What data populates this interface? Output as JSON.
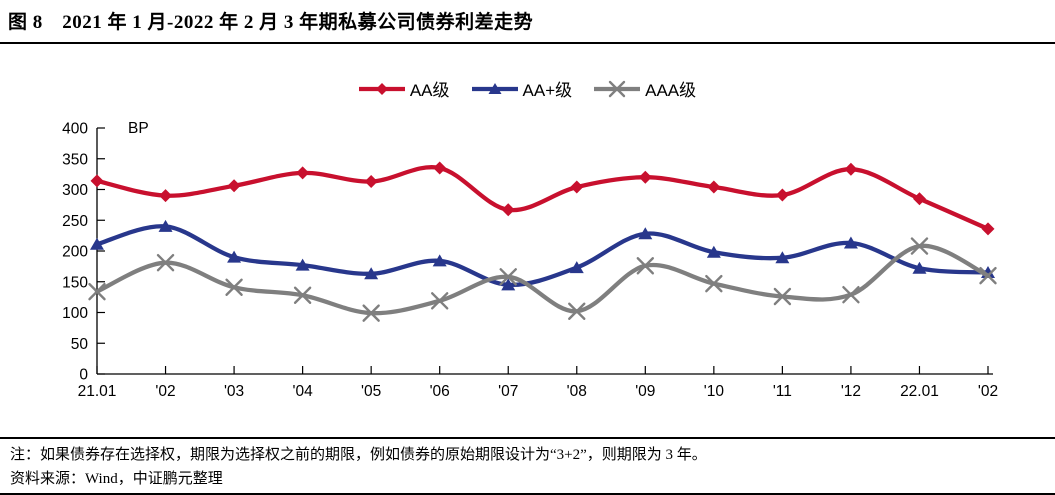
{
  "page": {
    "title": "图 8　2021 年 1 月-2022 年 2 月 3 年期私募公司债券利差走势",
    "note": "注：如果债券存在选择权，期限为选择权之前的期限，例如债券的原始期限设计为“3+2”，则期限为 3 年。",
    "source": "资料来源：Wind，中证鹏元整理"
  },
  "chart_data": {
    "type": "line",
    "title": "2021年1月-2022年2月3年期私募公司债券利差走势",
    "unit_label": "BP",
    "xlabel": "",
    "ylabel": "BP",
    "ylim": [
      0,
      400
    ],
    "ytick_step": 50,
    "grid": false,
    "smooth": true,
    "legend_position": "top-center",
    "categories": [
      "21.01",
      "'02",
      "'03",
      "'04",
      "'05",
      "'06",
      "'07",
      "'08",
      "'09",
      "'10",
      "'11",
      "'12",
      "22.01",
      "'02"
    ],
    "series": [
      {
        "name": "AA级",
        "color": "#c8102e",
        "marker": "diamond",
        "values": [
          314,
          290,
          306,
          327,
          313,
          335,
          267,
          304,
          320,
          304,
          291,
          333,
          285,
          236
        ]
      },
      {
        "name": "AA+级",
        "color": "#28378c",
        "marker": "triangle",
        "values": [
          211,
          240,
          190,
          177,
          163,
          184,
          145,
          173,
          228,
          198,
          189,
          213,
          172,
          165
        ]
      },
      {
        "name": "AAA级",
        "color": "#7f7f7f",
        "marker": "x",
        "values": [
          134,
          181,
          141,
          128,
          99,
          119,
          158,
          102,
          176,
          147,
          126,
          129,
          208,
          160
        ]
      }
    ]
  }
}
